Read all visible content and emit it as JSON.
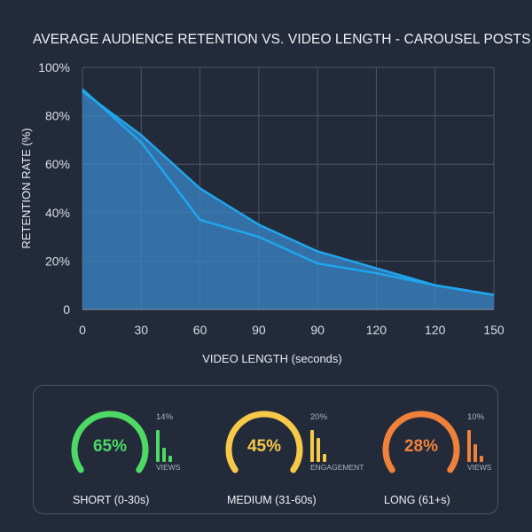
{
  "chart_data": {
    "type": "area",
    "title": "AVERAGE AUDIENCE RETENTION VS. VIDEO LENGTH - CAROUSEL POSTS",
    "xlabel": "VIDEO LENGTH (seconds)",
    "ylabel": "RETENTION RATE (%)",
    "x_ticks": [
      "0",
      "30",
      "60",
      "90",
      "90",
      "120",
      "120",
      "150"
    ],
    "y_ticks": [
      "0",
      "20%",
      "40%",
      "60%",
      "80%",
      "100%"
    ],
    "ylim": [
      0,
      100
    ],
    "grid": true,
    "series": [
      {
        "values": [
          90,
          72,
          50,
          35,
          24,
          17,
          10,
          6
        ]
      },
      {
        "values": [
          91,
          69,
          37,
          30,
          19,
          15,
          10,
          6
        ]
      }
    ],
    "colors": {
      "line": "#1fa6ee",
      "fill": "#3a84c4",
      "grid": "#4b5566"
    }
  },
  "metrics": [
    {
      "percent": "65%",
      "value": 65,
      "small_top": "14%",
      "small_bottom": "VIEWS",
      "label": "SHORT (0-30s)",
      "color": "#4cd964",
      "bars": [
        1.0,
        0.45,
        0.2
      ]
    },
    {
      "percent": "45%",
      "value": 45,
      "small_top": "20%",
      "small_bottom": "ENGAGEMENT",
      "label": "MEDIUM (31-60s)",
      "color": "#f7c948",
      "bars": [
        1.0,
        0.75,
        0.25
      ]
    },
    {
      "percent": "28%",
      "value": 28,
      "small_top": "10%",
      "small_bottom": "VIEWS",
      "label": "LONG (61+s)",
      "color": "#f0813a",
      "bars": [
        1.0,
        0.55,
        0.2
      ]
    }
  ]
}
